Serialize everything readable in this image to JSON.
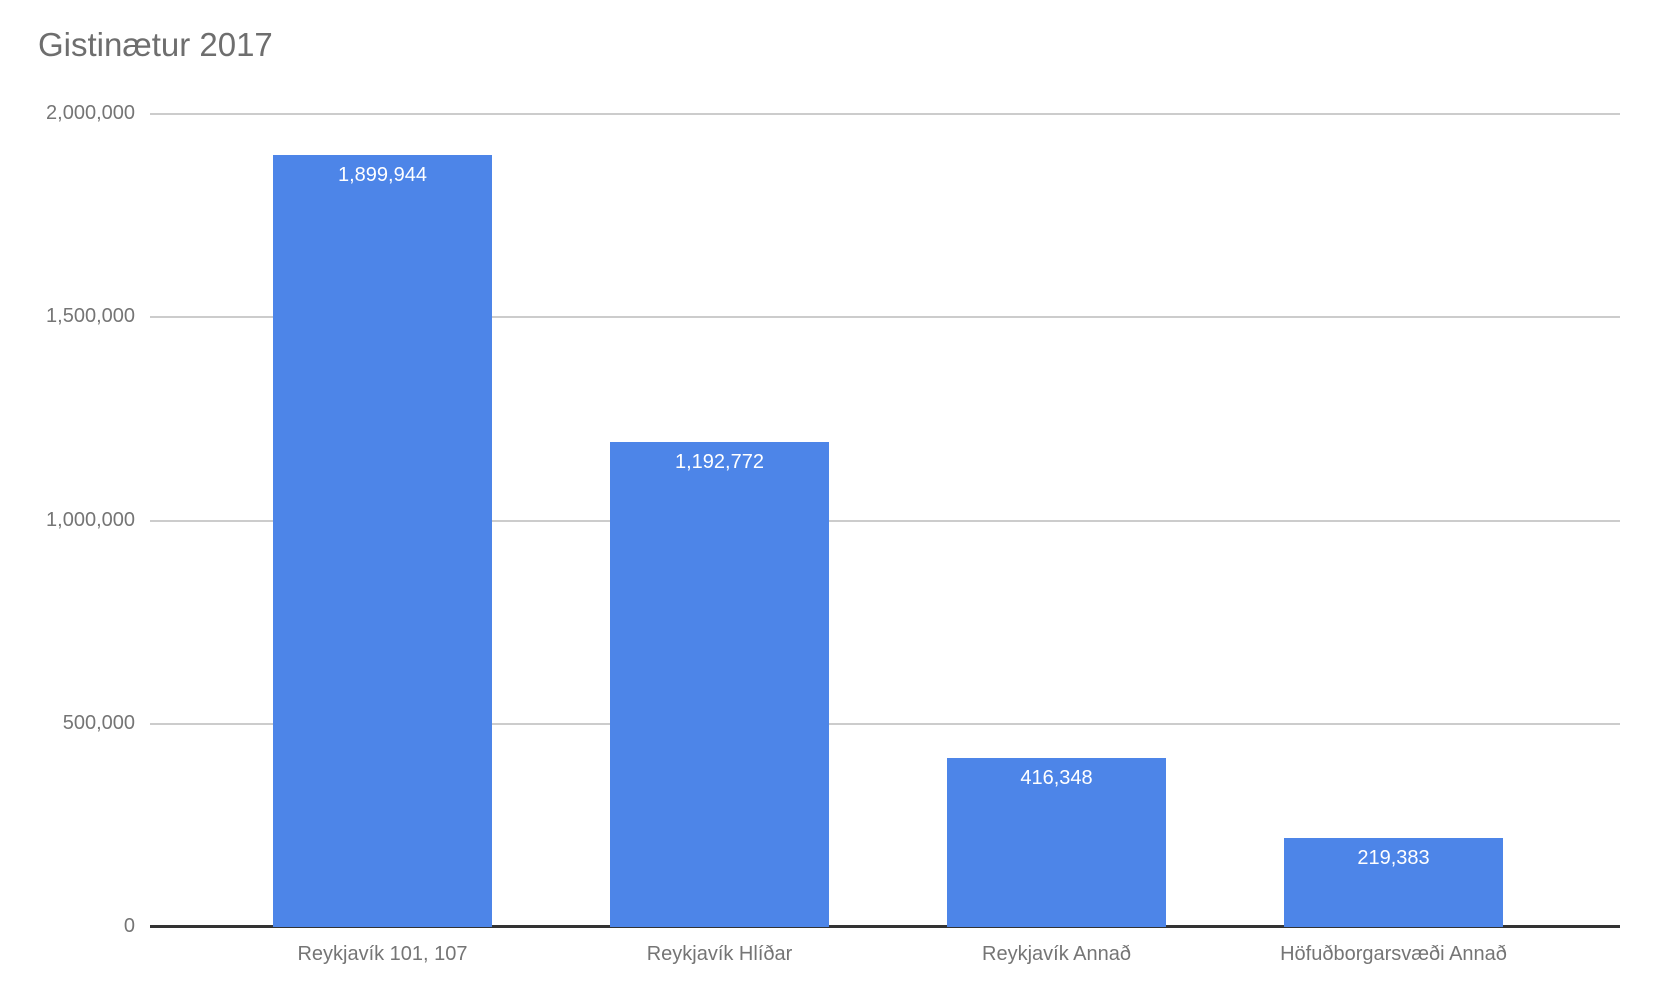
{
  "page": {
    "background": "#ffffff"
  },
  "chart_data": {
    "type": "bar",
    "title": "Gistinætur 2017",
    "categories": [
      "Reykjavík 101, 107",
      "Reykjavík Hlíðar",
      "Reykjavík Annað",
      "Höfuðborgarsvæði Annað"
    ],
    "values": [
      1899944,
      1192772,
      416348,
      219383
    ],
    "value_labels": [
      "1,899,944",
      "1,192,772",
      "416,348",
      "219,383"
    ],
    "xlabel": "",
    "ylabel": "",
    "ylim": [
      0,
      2000000
    ],
    "yticks": [
      0,
      500000,
      1000000,
      1500000,
      2000000
    ],
    "ytick_labels": [
      "0",
      "500,000",
      "1,000,000",
      "1,500,000",
      "2,000,000"
    ],
    "grid": true,
    "legend": "none",
    "colors": {
      "bar": "#4d85e8",
      "value_label": "#ffffff",
      "title": "#6e6e6e",
      "axis_text": "#757575",
      "gridline": "#cccccc",
      "baseline": "#333333"
    }
  }
}
